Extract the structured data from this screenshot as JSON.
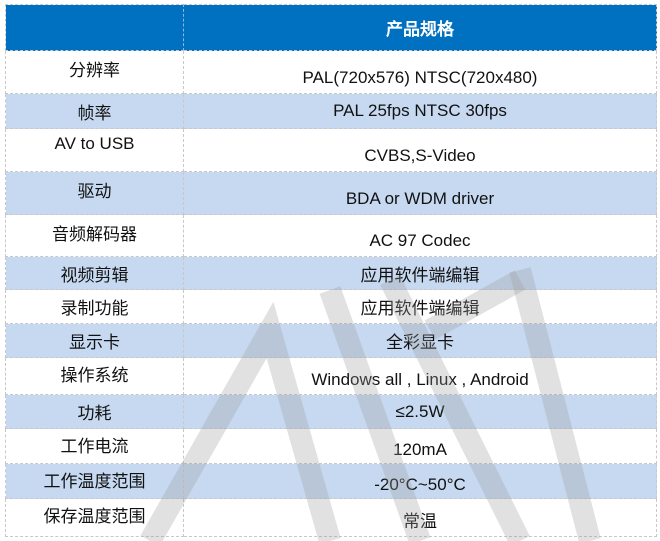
{
  "header": {
    "label_col": "",
    "title": "产品规格"
  },
  "rows": [
    {
      "label": "分辨率",
      "value": "PAL(720x576) NTSC(720x480)"
    },
    {
      "label": "帧率",
      "value": "PAL 25fps NTSC 30fps"
    },
    {
      "label": "AV to USB",
      "value": "CVBS,S-Video"
    },
    {
      "label": "驱动",
      "value": "BDA or WDM driver"
    },
    {
      "label": "音频解码器",
      "value": "AC 97 Codec"
    },
    {
      "label": "视频剪辑",
      "value": "应用软件端编辑"
    },
    {
      "label": "录制功能",
      "value": "应用软件端编辑"
    },
    {
      "label": "显示卡",
      "value": "全彩显卡"
    },
    {
      "label": "操作系统",
      "value": "Windows all , Linux , Android"
    },
    {
      "label": "功耗",
      "value": "≤2.5W"
    },
    {
      "label": "工作电流",
      "value": "120mA"
    },
    {
      "label": "工作温度范围",
      "value": "-20°C~50°C"
    },
    {
      "label": "保存温度范围",
      "value": "常温"
    }
  ],
  "colors": {
    "header": "#0070c0",
    "alt_row": "#c6d9f1"
  }
}
